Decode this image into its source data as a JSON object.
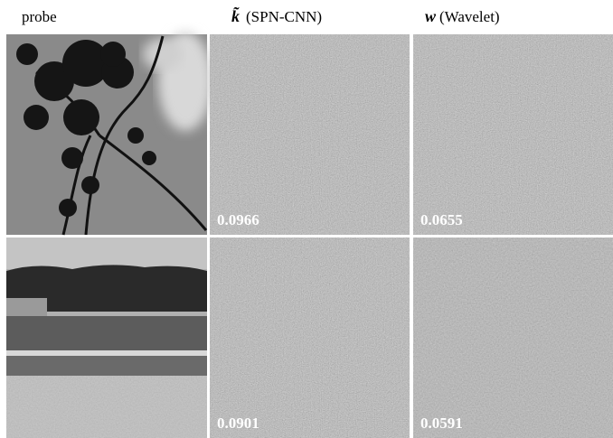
{
  "figure": {
    "columns": [
      {
        "label": "probe"
      },
      {
        "symbol": "k̃",
        "label": "(SPN-CNN)"
      },
      {
        "symbol": "w",
        "label": "(Wavelet)"
      }
    ],
    "rows": [
      {
        "scores": [
          0.0966,
          0.0655
        ]
      },
      {
        "scores": [
          0.0901,
          0.0591
        ]
      }
    ]
  }
}
